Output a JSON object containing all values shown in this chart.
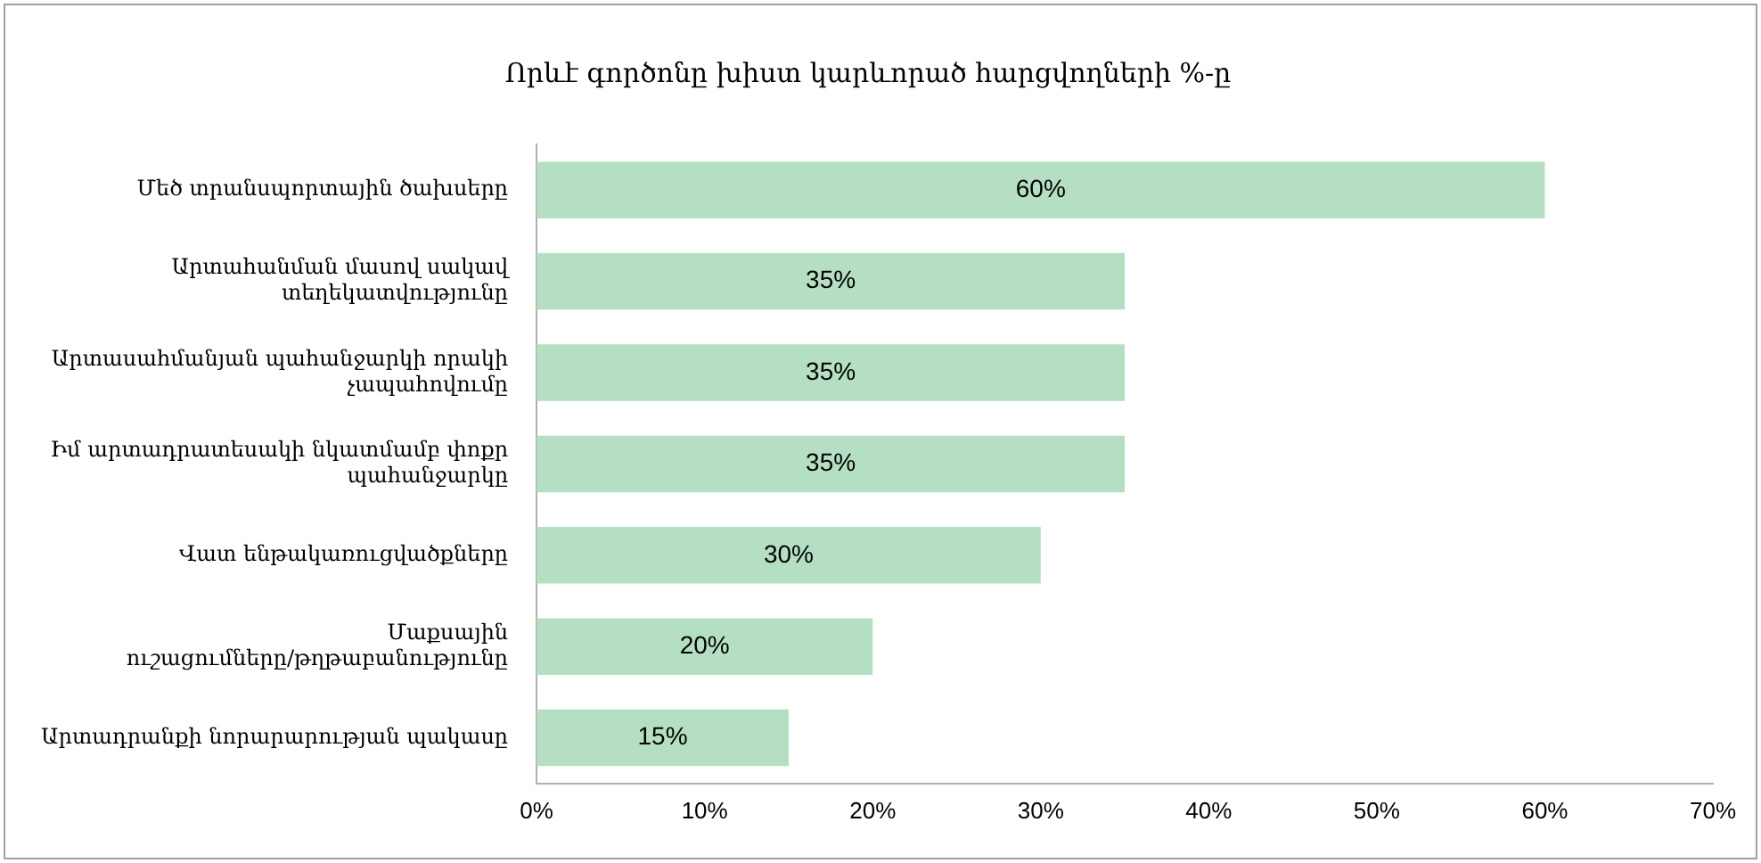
{
  "chart_data": {
    "type": "bar",
    "orientation": "horizontal",
    "title": "Որևէ գործոնը խիստ կարևորած հարցվողների %-ը",
    "categories": [
      "Մեծ տրանսպորտային ծախսերը",
      "Արտահանման մասով սակավ տեղեկատվությունը",
      "Արտասահմանյան պահանջարկի որակի չապահովումը",
      "Իմ արտադրատեսակի նկատմամբ փոքր պահանջարկը",
      "Վատ ենթակառուցվածքները",
      "Մաքսային ուշացումները/թղթաբանությունը",
      "Արտադրանքի նորարարության պակասը"
    ],
    "values": [
      60,
      35,
      35,
      35,
      30,
      20,
      15
    ],
    "value_labels": [
      "60%",
      "35%",
      "35%",
      "35%",
      "30%",
      "20%",
      "15%"
    ],
    "color": "#b5dfc2",
    "xlim": [
      0,
      70
    ],
    "xticks": [
      {
        "value": 0,
        "label": "0%"
      },
      {
        "value": 10,
        "label": "10%"
      },
      {
        "value": 20,
        "label": "20%"
      },
      {
        "value": 30,
        "label": "30%"
      },
      {
        "value": 40,
        "label": "40%"
      },
      {
        "value": 50,
        "label": "50%"
      },
      {
        "value": 60,
        "label": "60%"
      },
      {
        "value": 70,
        "label": "70%"
      }
    ],
    "grid": false,
    "legend": false
  }
}
